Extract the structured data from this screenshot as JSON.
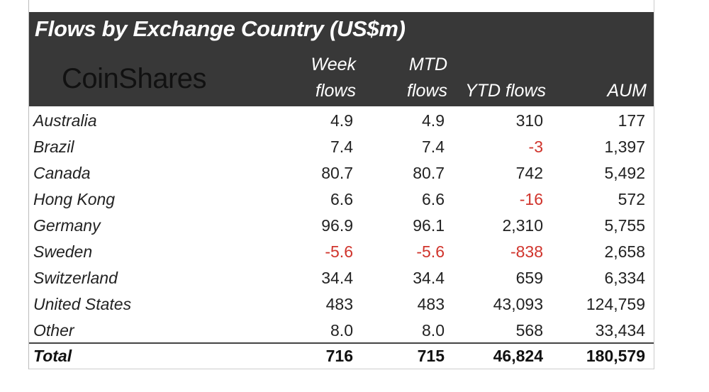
{
  "title": "Flows by Exchange Country (US$m)",
  "logo": "CoinShares",
  "columns": [
    [
      "Week",
      "flows"
    ],
    [
      "MTD",
      "flows"
    ],
    [
      "",
      "YTD flows"
    ],
    [
      "",
      "AUM"
    ]
  ],
  "rows": [
    [
      "Australia",
      "4.9",
      "4.9",
      "310",
      "177"
    ],
    [
      "Brazil",
      "7.4",
      "7.4",
      "-3",
      "1,397"
    ],
    [
      "Canada",
      "80.7",
      "80.7",
      "742",
      "5,492"
    ],
    [
      "Hong Kong",
      "6.6",
      "6.6",
      "-16",
      "572"
    ],
    [
      "Germany",
      "96.9",
      "96.1",
      "2,310",
      "5,755"
    ],
    [
      "Sweden",
      "-5.6",
      "-5.6",
      "-838",
      "2,658"
    ],
    [
      "Switzerland",
      "34.4",
      "34.4",
      "659",
      "6,334"
    ],
    [
      "United States",
      "483",
      "483",
      "43,093",
      "124,759"
    ],
    [
      "Other",
      "8.0",
      "8.0",
      "568",
      "33,434"
    ]
  ],
  "total": [
    "Total",
    "716",
    "715",
    "46,824",
    "180,579"
  ],
  "colors": {
    "header_bg": "#383838",
    "negative": "#d0342c"
  }
}
